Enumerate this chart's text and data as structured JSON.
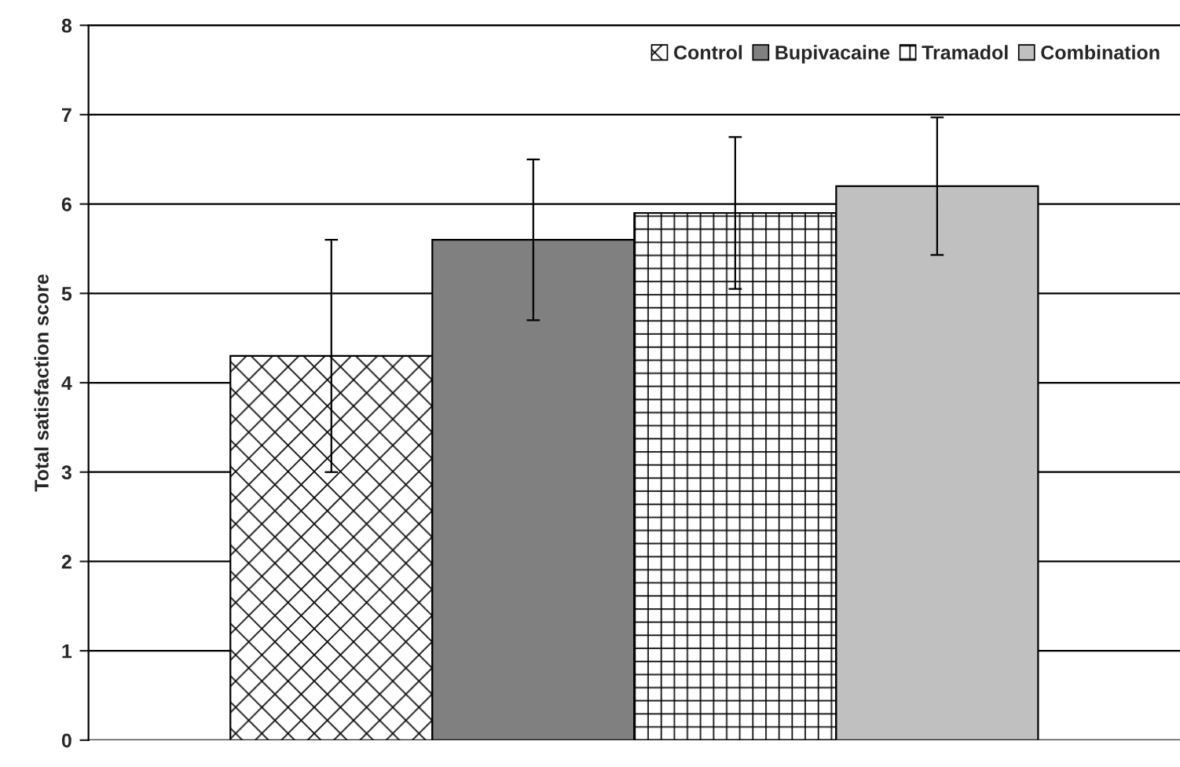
{
  "chart_data": {
    "type": "bar",
    "ylabel": "Total satisfaction score",
    "categories": [
      null
    ],
    "series": [
      {
        "name": "Control",
        "color": "#000000",
        "values": [
          4.3
        ],
        "errors": [
          1.3
        ]
      },
      {
        "name": "Bupivacaine",
        "color": "#808080",
        "values": [
          5.6
        ],
        "errors": [
          0.9
        ]
      },
      {
        "name": "Tramadol",
        "color": "#000000",
        "values": [
          5.9
        ],
        "errors": [
          0.85
        ]
      },
      {
        "name": "Combination",
        "color": "#c0c0c0",
        "values": [
          6.2
        ],
        "errors": [
          0.77
        ]
      }
    ],
    "ylim": [
      0,
      8
    ],
    "yticks": [
      0,
      1,
      2,
      3,
      4,
      5,
      6,
      7,
      8
    ],
    "grid": "y",
    "legend": "top right"
  }
}
